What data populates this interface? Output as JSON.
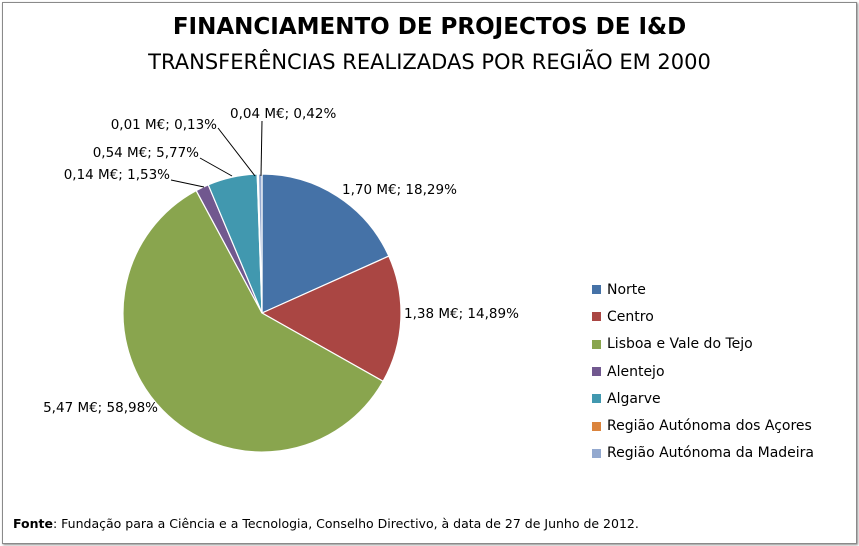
{
  "chart_data": {
    "type": "pie",
    "title": "FINANCIAMENTO DE PROJECTOS DE I&D",
    "subtitle": "TRANSFERÊNCIAS REALIZADAS POR REGIÃO EM 2000",
    "legend_position": "right",
    "slices": [
      {
        "label": "Norte",
        "value": 18.29,
        "amount": 1.7,
        "data_label": "1,70 M€; 18,29%",
        "color": "#4572A7"
      },
      {
        "label": "Centro",
        "value": 14.89,
        "amount": 1.38,
        "data_label": "1,38 M€; 14,89%",
        "color": "#AA4643"
      },
      {
        "label": "Lisboa e Vale do Tejo",
        "value": 58.98,
        "amount": 5.47,
        "data_label": "5,47 M€; 58,98%",
        "color": "#89A54E"
      },
      {
        "label": "Alentejo",
        "value": 1.53,
        "amount": 0.14,
        "data_label": "0,14 M€; 1,53%",
        "color": "#71588F"
      },
      {
        "label": "Algarve",
        "value": 5.77,
        "amount": 0.54,
        "data_label": "0,54 M€; 5,77%",
        "color": "#4198AF"
      },
      {
        "label": "Região Autónoma dos Açores",
        "value": 0.13,
        "amount": 0.01,
        "data_label": "0,01 M€; 0,13%",
        "color": "#DB843D"
      },
      {
        "label": "Região Autónoma da Madeira",
        "value": 0.42,
        "amount": 0.04,
        "data_label": "0,04 M€; 0,42%",
        "color": "#93A9CF"
      }
    ]
  },
  "footer": {
    "source_label": "Fonte",
    "source_text": ": Fundação para a Ciência e a Tecnologia, Conselho Directivo, à data de 27 de Junho de 2012."
  }
}
